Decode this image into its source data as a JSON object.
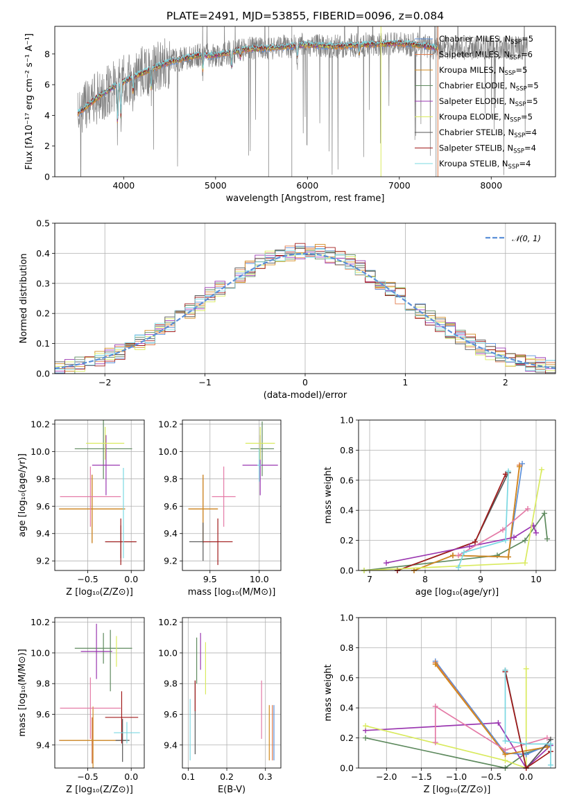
{
  "colors": {
    "chabrier_miles": "#5b8fd8",
    "salpeter_miles": "#e07a4a",
    "kroupa_miles": "#d18a1e",
    "chabrier_elodie": "#5e8a5e",
    "salpeter_elodie": "#9a36b0",
    "kroupa_elodie": "#d9ea5e",
    "chabrier_stelib": "#555555",
    "salpeter_stelib": "#a01a1a",
    "kroupa_stelib": "#7ad8e2",
    "data": "#808080",
    "normal": "#5b8fd8",
    "pink": "#e47aa6"
  },
  "chart_data": [
    {
      "id": "spectrum",
      "type": "line",
      "title": "PLATE=2491, MJD=53855, FIBERID=0096, z=0.084",
      "xlabel": "wavelength [Angstrom, rest frame]",
      "ylabel": "Flux [fλ10⁻¹⁷ erg cm⁻² s⁻¹ A⁻¹]",
      "xlim": [
        3250,
        8700
      ],
      "ylim": [
        0,
        9.8
      ],
      "xticks": [
        "4000",
        "5000",
        "6000",
        "7000",
        "8000"
      ],
      "yticks": [
        "0",
        "2",
        "4",
        "6",
        "8"
      ],
      "legend_position": "top-right",
      "legend": [
        "Chabrier MILES, N_SSP=5",
        "Salpeter MILES, N_SSP=6",
        "Kroupa MILES, N_SSP=5",
        "Chabrier ELODIE, N_SSP=5",
        "Salpeter ELODIE, N_SSP=5",
        "Kroupa ELODIE, N_SSP=5",
        "Chabrier STELIB, N_SSP=4",
        "Salpeter STELIB, N_SSP=4",
        "Kroupa STELIB, N_SSP=4"
      ],
      "continuum": {
        "x": [
          3500,
          3700,
          3900,
          4100,
          4300,
          4500,
          4800,
          5000,
          5300,
          5600,
          6000,
          6300,
          6600,
          7000,
          7200,
          7400
        ],
        "y": [
          4.1,
          5.1,
          5.9,
          6.5,
          7.0,
          7.5,
          7.9,
          7.9,
          8.3,
          8.4,
          8.6,
          8.5,
          8.6,
          8.7,
          8.6,
          8.4
        ]
      },
      "data_range": [
        3500,
        8400
      ],
      "model_range": [
        3500,
        7420
      ]
    },
    {
      "id": "residuals",
      "type": "histogram",
      "xlabel": "(data-model)/error",
      "ylabel": "Normed distribution",
      "xlim": [
        -2.5,
        2.5
      ],
      "ylim": [
        0,
        0.5
      ],
      "xticks": [
        "−2",
        "−1",
        "0",
        "1",
        "2"
      ],
      "yticks": [
        "0.0",
        "0.1",
        "0.2",
        "0.3",
        "0.4",
        "0.5"
      ],
      "legend_position": "top-right",
      "legend": [
        "𝒩(0, 1)"
      ],
      "bin_width": 0.1
    },
    {
      "id": "age_vs_Z",
      "type": "errorbar",
      "xlabel": "Z [log₁₀(Z/Z⊙)]",
      "ylabel": "age  [log₁₀(age/yr)]",
      "xlim": [
        -0.88,
        0.15
      ],
      "ylim": [
        9.13,
        10.23
      ],
      "xticks": [
        "−0.5",
        "0.0"
      ],
      "xtick_values": [
        -0.5,
        0.0
      ],
      "yticks": [
        "9.2",
        "9.4",
        "9.6",
        "9.8",
        "10.0",
        "10.2"
      ],
      "ytick_values": [
        9.2,
        9.4,
        9.6,
        9.8,
        10.0,
        10.2
      ],
      "points": [
        {
          "s": "chabrier_miles",
          "x": -0.45,
          "y": 9.58,
          "ex": 0.38,
          "ey": 0.25
        },
        {
          "s": "salpeter_miles",
          "x": -0.45,
          "y": 9.58,
          "ex": 0.38,
          "ey": 0.25
        },
        {
          "s": "kroupa_miles",
          "x": -0.45,
          "y": 9.58,
          "ex": 0.38,
          "ey": 0.25
        },
        {
          "s": "pink",
          "x": -0.47,
          "y": 9.67,
          "ex": 0.35,
          "ey": 0.22
        },
        {
          "s": "chabrier_elodie",
          "x": -0.32,
          "y": 10.02,
          "ex": 0.33,
          "ey": 0.22
        },
        {
          "s": "salpeter_elodie",
          "x": -0.29,
          "y": 9.9,
          "ex": 0.16,
          "ey": 0.22
        },
        {
          "s": "kroupa_elodie",
          "x": -0.3,
          "y": 10.06,
          "ex": 0.22,
          "ey": 0.12
        },
        {
          "s": "chabrier_stelib",
          "x": -0.12,
          "y": 9.34,
          "ex": 0.18,
          "ey": 0.12
        },
        {
          "s": "salpeter_stelib",
          "x": -0.12,
          "y": 9.34,
          "ex": 0.18,
          "ey": 0.17
        },
        {
          "s": "kroupa_stelib",
          "x": -0.09,
          "y": 9.55,
          "ex": 0.0,
          "ey": 0.33
        }
      ]
    },
    {
      "id": "age_vs_mass",
      "type": "errorbar",
      "xlabel": "mass [log₁₀(M/M⊙)]",
      "xlim": [
        9.22,
        10.22
      ],
      "ylim": [
        9.13,
        10.23
      ],
      "xticks": [
        "9.5",
        "10.0"
      ],
      "xtick_values": [
        9.5,
        10.0
      ],
      "yticks": [
        "9.2",
        "9.4",
        "9.6",
        "9.8",
        "10.0",
        "10.2"
      ],
      "ytick_values": [
        9.2,
        9.4,
        9.6,
        9.8,
        10.0,
        10.2
      ],
      "points": [
        {
          "s": "chabrier_miles",
          "x": 9.43,
          "y": 9.58,
          "ex": 0.15,
          "ey": 0.25
        },
        {
          "s": "salpeter_miles",
          "x": 9.43,
          "y": 9.58,
          "ex": 0.15,
          "ey": 0.25
        },
        {
          "s": "kroupa_miles",
          "x": 9.43,
          "y": 9.58,
          "ex": 0.15,
          "ey": 0.25
        },
        {
          "s": "pink",
          "x": 9.64,
          "y": 9.67,
          "ex": 0.12,
          "ey": 0.22
        },
        {
          "s": "chabrier_elodie",
          "x": 10.03,
          "y": 10.02,
          "ex": 0.12,
          "ey": 0.2
        },
        {
          "s": "salpeter_elodie",
          "x": 10.01,
          "y": 9.9,
          "ex": 0.18,
          "ey": 0.22
        },
        {
          "s": "kroupa_elodie",
          "x": 10.01,
          "y": 10.06,
          "ex": 0.15,
          "ey": 0.12
        },
        {
          "s": "chabrier_stelib",
          "x": 9.43,
          "y": 9.34,
          "ex": 0.14,
          "ey": 0.14
        },
        {
          "s": "salpeter_stelib",
          "x": 9.58,
          "y": 9.34,
          "ex": 0.15,
          "ey": 0.17
        },
        {
          "s": "kroupa_stelib",
          "x": 10.0,
          "y": 9.9,
          "ex": 0.02,
          "ey": 0.12
        }
      ]
    },
    {
      "id": "weight_vs_age",
      "type": "line",
      "xlabel": "age  [log₁₀(age/yr)]",
      "ylabel": "mass weight",
      "xlim": [
        6.8,
        10.35
      ],
      "ylim": [
        0,
        1.0
      ],
      "xticks": [
        "7",
        "8",
        "9",
        "10"
      ],
      "xtick_values": [
        7,
        8,
        9,
        10
      ],
      "yticks": [
        "0.0",
        "0.2",
        "0.4",
        "0.6",
        "0.8",
        "1.0"
      ],
      "ytick_values": [
        0,
        0.2,
        0.4,
        0.6,
        0.8,
        1.0
      ],
      "series": [
        {
          "s": "chabrier_elodie",
          "x": [
            6.9,
            9.3,
            9.8,
            10.15,
            10.2
          ],
          "y": [
            0.0,
            0.1,
            0.2,
            0.38,
            0.21
          ]
        },
        {
          "s": "chabrier_stelib",
          "x": [
            7.5,
            8.9,
            9.5
          ],
          "y": [
            0.0,
            0.19,
            0.65
          ]
        },
        {
          "s": "salpeter_stelib",
          "x": [
            7.5,
            8.9,
            9.45
          ],
          "y": [
            0.0,
            0.19,
            0.64
          ]
        },
        {
          "s": "chabrier_miles",
          "x": [
            7.8,
            8.5,
            9.5,
            9.75
          ],
          "y": [
            0.0,
            0.1,
            0.09,
            0.71
          ]
        },
        {
          "s": "salpeter_miles",
          "x": [
            7.8,
            8.5,
            9.5,
            9.7
          ],
          "y": [
            0.0,
            0.1,
            0.09,
            0.7
          ]
        },
        {
          "s": "kroupa_miles",
          "x": [
            7.8,
            8.5,
            9.5,
            9.7
          ],
          "y": [
            0.0,
            0.1,
            0.09,
            0.69
          ]
        },
        {
          "s": "salpeter_elodie",
          "x": [
            7.3,
            8.8,
            9.6,
            9.95,
            10.0
          ],
          "y": [
            0.05,
            0.16,
            0.22,
            0.3,
            0.25
          ]
        },
        {
          "s": "pink",
          "x": [
            8.6,
            9.4,
            9.85
          ],
          "y": [
            0.1,
            0.27,
            0.41
          ]
        },
        {
          "s": "kroupa_elodie",
          "x": [
            6.9,
            9.8,
            10.1
          ],
          "y": [
            0.0,
            0.05,
            0.67
          ]
        },
        {
          "s": "kroupa_stelib",
          "x": [
            8.6,
            8.7,
            9.45,
            9.5
          ],
          "y": [
            0.02,
            0.12,
            0.2,
            0.66
          ]
        }
      ]
    },
    {
      "id": "mass_vs_Z",
      "type": "errorbar",
      "xlabel": "Z [log₁₀(Z/Z⊙)]",
      "ylabel": "mass [log₁₀(M/M⊙)]",
      "xlim": [
        -0.88,
        0.15
      ],
      "ylim": [
        9.25,
        10.23
      ],
      "xticks": [
        "−0.5",
        "0.0"
      ],
      "xtick_values": [
        -0.5,
        0.0
      ],
      "yticks": [
        "9.4",
        "9.6",
        "9.8",
        "10.0",
        "10.2"
      ],
      "ytick_values": [
        9.4,
        9.6,
        9.8,
        10.0,
        10.2
      ],
      "points": [
        {
          "s": "chabrier_miles",
          "x": -0.45,
          "y": 9.43,
          "ex": 0.38,
          "ey": 0.15
        },
        {
          "s": "salpeter_miles",
          "x": -0.45,
          "y": 9.43,
          "ex": 0.38,
          "ey": 0.15
        },
        {
          "s": "kroupa_miles",
          "x": -0.44,
          "y": 9.43,
          "ex": 0.38,
          "ey": 0.22
        },
        {
          "s": "pink",
          "x": -0.47,
          "y": 9.64,
          "ex": 0.35,
          "ey": 0.2
        },
        {
          "s": "chabrier_elodie",
          "x": -0.32,
          "y": 10.03,
          "ex": 0.33,
          "ey": 0.1
        },
        {
          "s": "salpeter_elodie",
          "x": -0.4,
          "y": 10.01,
          "ex": 0.18,
          "ey": 0.18
        },
        {
          "s": "kroupa_elodie",
          "x": -0.17,
          "y": 10.01,
          "ex": 0.0,
          "ey": 0.1
        },
        {
          "s": "chabrier_stelib",
          "x": -0.1,
          "y": 9.43,
          "ex": 0.08,
          "ey": 0.14
        },
        {
          "s": "salpeter_stelib",
          "x": -0.11,
          "y": 9.58,
          "ex": 0.19,
          "ey": 0.17
        },
        {
          "s": "kroupa_stelib",
          "x": -0.05,
          "y": 9.48,
          "ex": 0.15,
          "ey": 0.07
        },
        {
          "s": "chabrier_elodie",
          "x": -0.24,
          "y": 9.95,
          "ex": 0.0,
          "ey": 0.2
        }
      ]
    },
    {
      "id": "mass_vs_ebv",
      "type": "errorbar",
      "xlabel": "E(B-V)",
      "xlim": [
        0.085,
        0.34
      ],
      "ylim": [
        9.25,
        10.23
      ],
      "xticks": [
        "0.1",
        "0.2",
        "0.3"
      ],
      "xtick_values": [
        0.1,
        0.2,
        0.3
      ],
      "yticks": [
        "9.4",
        "9.6",
        "9.8",
        "10.0",
        "10.2"
      ],
      "ytick_values": [
        9.4,
        9.6,
        9.8,
        10.0,
        10.2
      ],
      "points": [
        {
          "s": "chabrier_stelib",
          "x": 0.118,
          "y": 9.58,
          "ex": 0,
          "ey": 0.24
        },
        {
          "s": "salpeter_stelib",
          "x": 0.118,
          "y": 9.72,
          "ex": 0,
          "ey": 0.1
        },
        {
          "s": "chabrier_elodie",
          "x": 0.122,
          "y": 9.95,
          "ex": 0,
          "ey": 0.15
        },
        {
          "s": "salpeter_elodie",
          "x": 0.132,
          "y": 10.01,
          "ex": 0,
          "ey": 0.12
        },
        {
          "s": "kroupa_elodie",
          "x": 0.145,
          "y": 9.9,
          "ex": 0,
          "ey": 0.17
        },
        {
          "s": "kroupa_stelib",
          "x": 0.105,
          "y": 9.5,
          "ex": 0,
          "ey": 0.2
        },
        {
          "s": "pink",
          "x": 0.29,
          "y": 9.63,
          "ex": 0,
          "ey": 0.19
        },
        {
          "s": "kroupa_miles",
          "x": 0.31,
          "y": 9.48,
          "ex": 0,
          "ey": 0.18
        },
        {
          "s": "chabrier_miles",
          "x": 0.322,
          "y": 9.48,
          "ex": 0,
          "ey": 0.18
        },
        {
          "s": "salpeter_miles",
          "x": 0.318,
          "y": 9.48,
          "ex": 0,
          "ey": 0.18
        }
      ]
    },
    {
      "id": "weight_vs_Z",
      "type": "line",
      "xlabel": "Z [log₁₀(Z/Z⊙)]",
      "ylabel": "mass weight",
      "xlim": [
        -2.4,
        0.42
      ],
      "ylim": [
        0,
        1.0
      ],
      "xticks": [
        "−2.0",
        "−1.5",
        "−1.0",
        "−0.5",
        "0.0"
      ],
      "xtick_values": [
        -2.0,
        -1.5,
        -1.0,
        -0.5,
        0.0
      ],
      "yticks": [
        "0.0",
        "0.2",
        "0.4",
        "0.6",
        "0.8",
        "1.0"
      ],
      "ytick_values": [
        0,
        0.2,
        0.4,
        0.6,
        0.8,
        1.0
      ],
      "series": [
        {
          "s": "chabrier_elodie",
          "x": [
            -2.3,
            -0.3,
            0.0,
            0.35
          ],
          "y": [
            0.2,
            0.0,
            0.1,
            0.15
          ]
        },
        {
          "s": "salpeter_elodie",
          "x": [
            -2.3,
            -0.4,
            0.0,
            0.35
          ],
          "y": [
            0.25,
            0.3,
            0.0,
            0.15
          ]
        },
        {
          "s": "kroupa_elodie",
          "x": [
            -2.3,
            -0.3,
            0.0,
            0.0
          ],
          "y": [
            0.28,
            0.05,
            0.0,
            0.66
          ]
        },
        {
          "s": "chabrier_miles",
          "x": [
            -1.3,
            -0.3,
            0.0,
            0.3
          ],
          "y": [
            0.71,
            0.1,
            0.09,
            0.15
          ]
        },
        {
          "s": "salpeter_miles",
          "x": [
            -1.3,
            -0.3,
            0.3
          ],
          "y": [
            0.7,
            0.09,
            0.14
          ]
        },
        {
          "s": "kroupa_miles",
          "x": [
            -1.3,
            -0.3,
            0.3
          ],
          "y": [
            0.69,
            0.09,
            0.14
          ]
        },
        {
          "s": "pink",
          "x": [
            -1.3,
            -1.3,
            -0.3,
            0.3
          ],
          "y": [
            0.17,
            0.41,
            0.12,
            0.2
          ]
        },
        {
          "s": "chabrier_stelib",
          "x": [
            -0.3,
            0.0,
            0.35
          ],
          "y": [
            0.65,
            0.0,
            0.19
          ]
        },
        {
          "s": "salpeter_stelib",
          "x": [
            -0.3,
            0.0,
            0.35
          ],
          "y": [
            0.64,
            0.0,
            0.11
          ]
        },
        {
          "s": "kroupa_stelib",
          "x": [
            -0.3,
            -0.3,
            0.0,
            0.35,
            0.35
          ],
          "y": [
            0.65,
            0.18,
            0.16,
            0.16,
            0.02
          ]
        }
      ]
    }
  ]
}
